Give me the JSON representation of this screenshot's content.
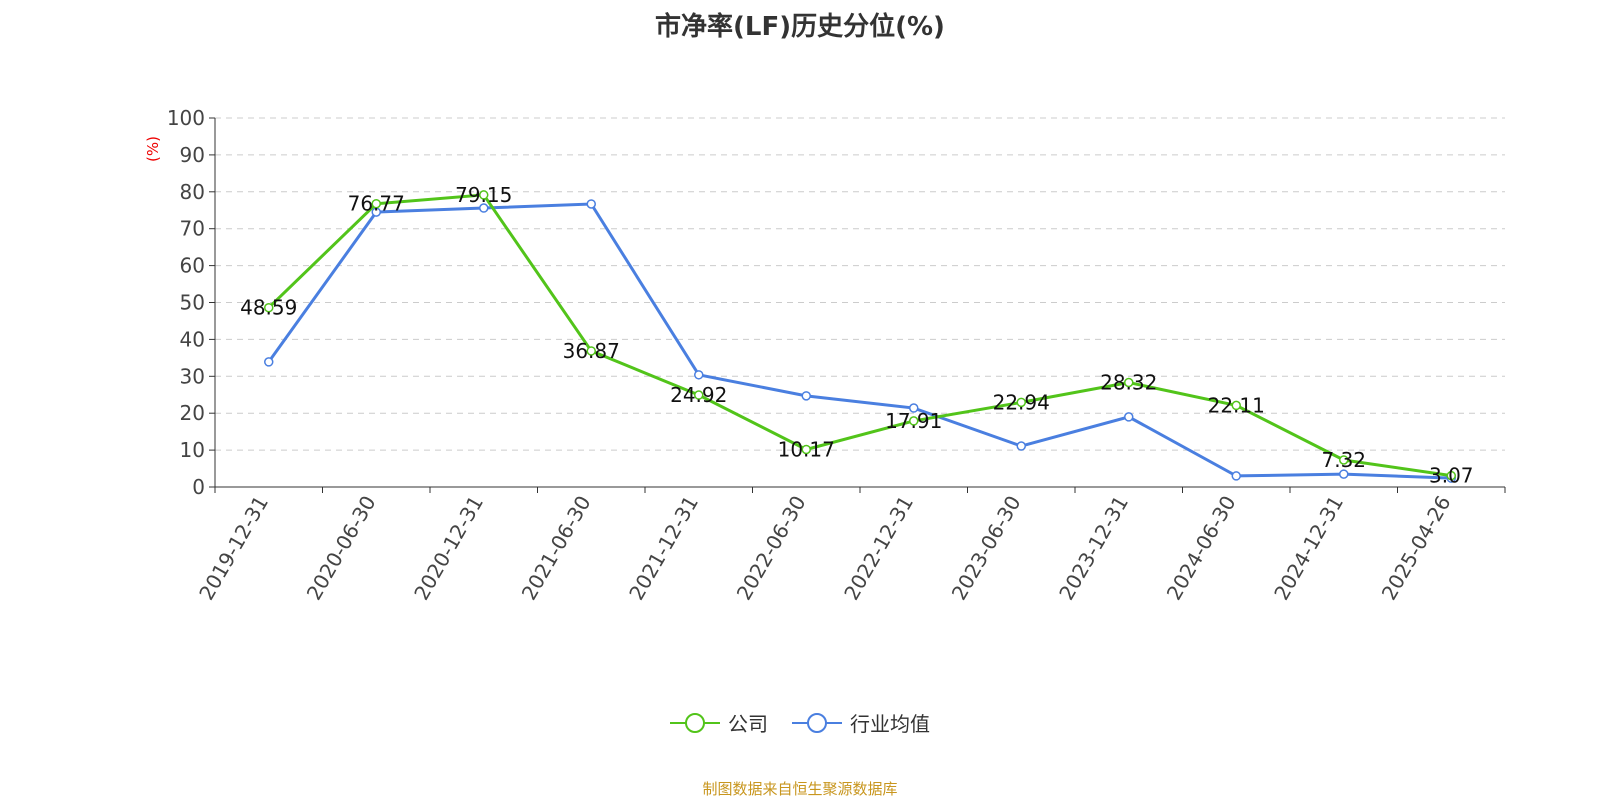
{
  "chart_data": {
    "type": "line",
    "title": "市净率(LF)历史分位(%)",
    "ylabel": "(%)",
    "xlabel": "",
    "ylim": [
      0,
      100
    ],
    "yticks": [
      0,
      10,
      20,
      30,
      40,
      50,
      60,
      70,
      80,
      90,
      100
    ],
    "grid": true,
    "legend_position": "bottom",
    "categories": [
      "2019-12-31",
      "2020-06-30",
      "2020-12-31",
      "2021-06-30",
      "2021-12-31",
      "2022-06-30",
      "2022-12-31",
      "2023-06-30",
      "2023-12-31",
      "2024-06-30",
      "2024-12-31",
      "2025-04-26"
    ],
    "series": [
      {
        "name": "公司",
        "color": "#52c41a",
        "labels": true,
        "values": [
          48.59,
          76.77,
          79.15,
          36.87,
          24.92,
          10.17,
          17.91,
          22.94,
          28.32,
          22.11,
          7.32,
          3.07
        ]
      },
      {
        "name": "行业均值",
        "color": "#4a7fe0",
        "labels": false,
        "values": [
          33.9,
          74.5,
          75.6,
          76.7,
          30.4,
          24.7,
          21.4,
          11.1,
          19.0,
          3.0,
          3.5,
          2.4
        ]
      }
    ]
  },
  "source": "制图数据来自恒生聚源数据库"
}
